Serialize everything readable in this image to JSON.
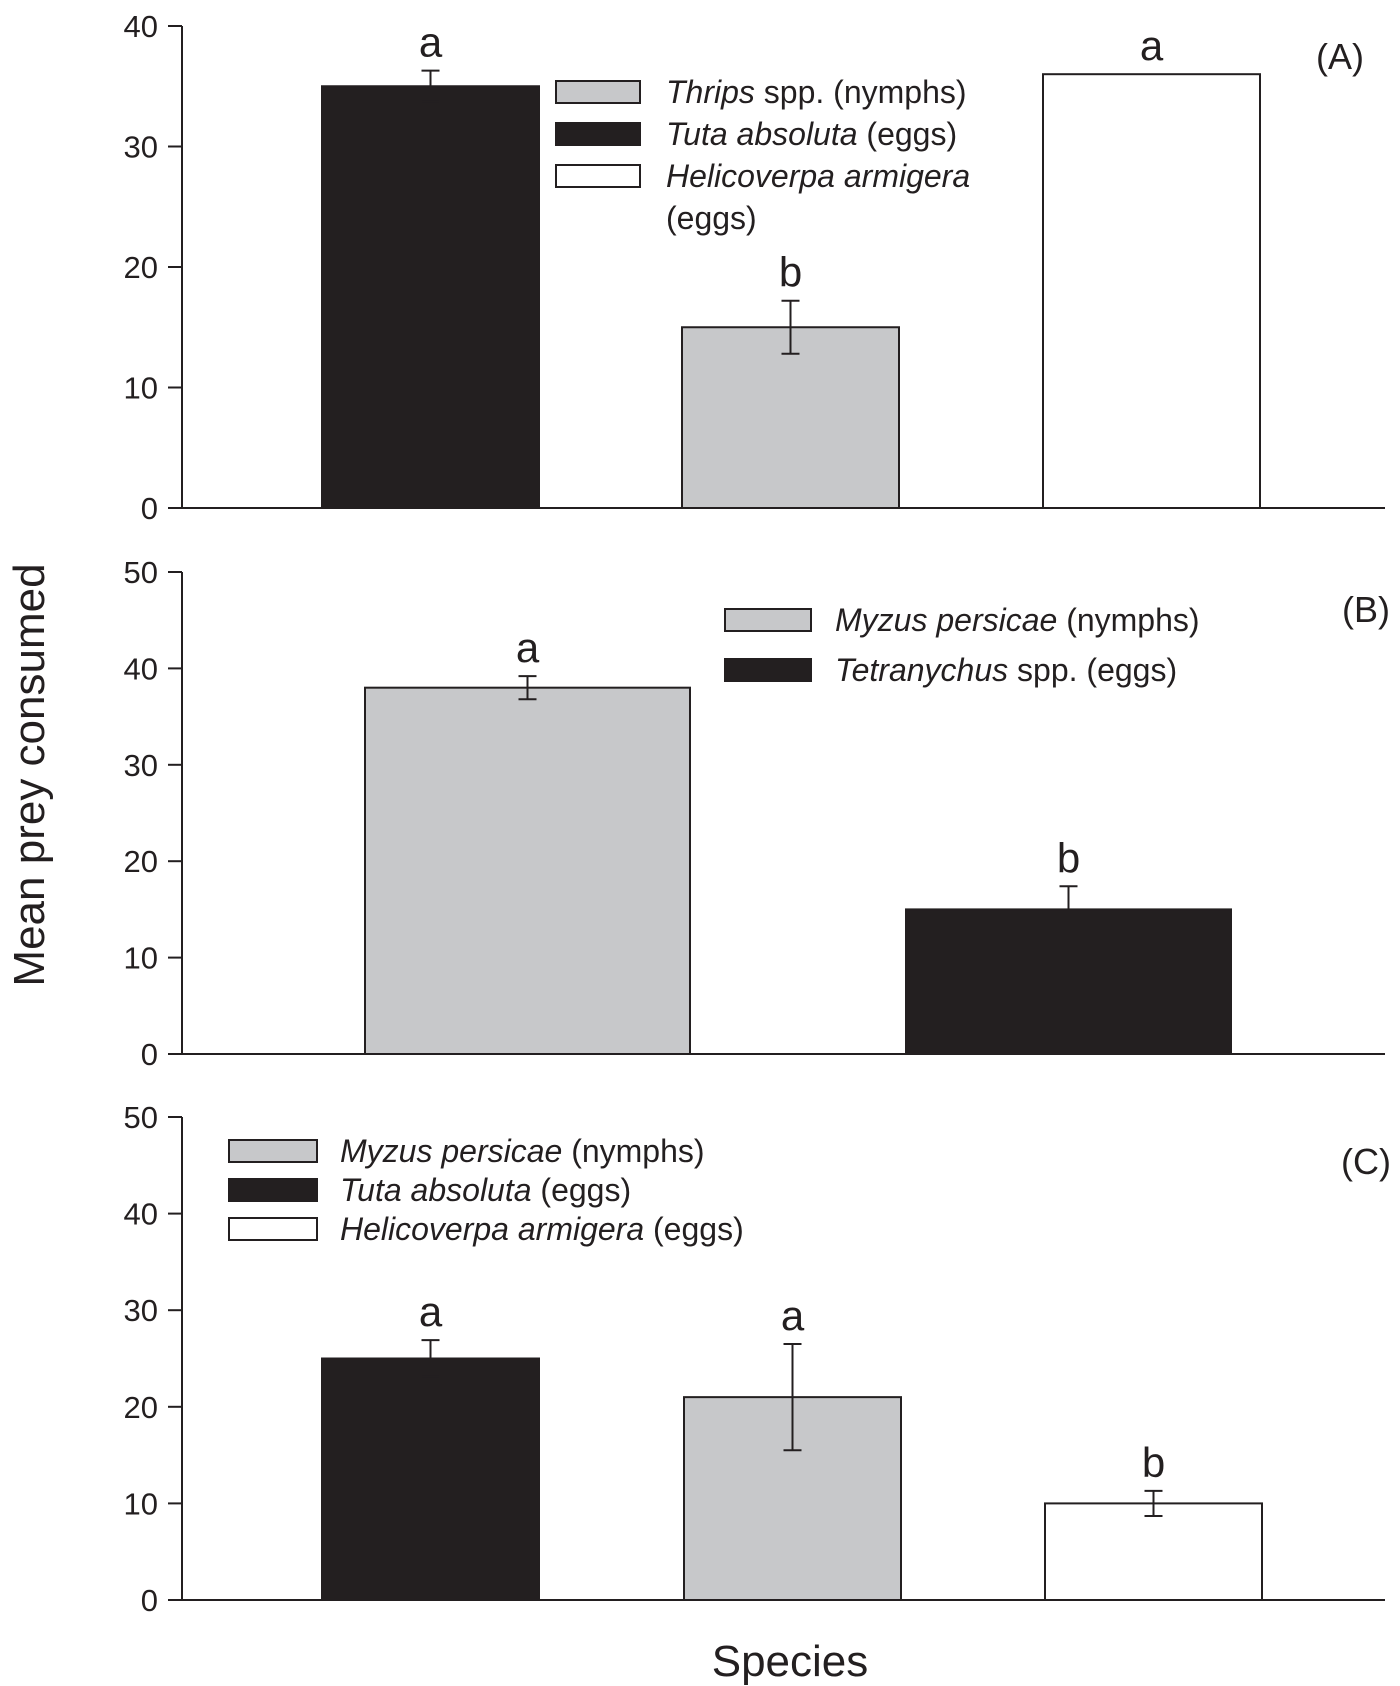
{
  "colors": {
    "black": "#231f20",
    "grey": "#c7c8ca",
    "white": "#ffffff"
  },
  "chart_data": {
    "type": "bar",
    "ylabel": "Mean prey consumed",
    "xlabel": "Species",
    "panels": [
      {
        "id": "A",
        "label": "(A)",
        "ylim": [
          0,
          40
        ],
        "yticks": [
          0,
          10,
          20,
          30,
          40
        ],
        "bars": [
          {
            "series": "Tuta absoluta (eggs)",
            "color": "black",
            "value": 35,
            "err": 1.3,
            "letter": "a"
          },
          {
            "series": "Thrips spp. (nymphs)",
            "color": "grey",
            "value": 15,
            "err": 2.2,
            "letter": "b"
          },
          {
            "series": "Helicoverpa armigera (eggs)",
            "color": "white",
            "value": 36,
            "err": 0,
            "letter": "a"
          }
        ],
        "legend": [
          {
            "color": "grey",
            "parts": [
              {
                "t": "Thrips",
                "i": true
              },
              {
                "t": " spp. (nymphs)",
                "i": false
              }
            ]
          },
          {
            "color": "black",
            "parts": [
              {
                "t": "Tuta absoluta",
                "i": true
              },
              {
                "t": " (eggs)",
                "i": false
              }
            ]
          },
          {
            "color": "white",
            "parts": [
              {
                "t": "Helicoverpa armigera",
                "i": true
              }
            ],
            "cont": [
              {
                "t": "(eggs)",
                "i": false
              }
            ]
          }
        ]
      },
      {
        "id": "B",
        "label": "(B)",
        "ylim": [
          0,
          50
        ],
        "yticks": [
          0,
          10,
          20,
          30,
          40,
          50
        ],
        "bars": [
          {
            "series": "Myzus persicae (nymphs)",
            "color": "grey",
            "value": 38,
            "err": 1.2,
            "letter": "a"
          },
          {
            "series": "Tetranychus spp. (eggs)",
            "color": "black",
            "value": 15,
            "err": 2.4,
            "letter": "b"
          }
        ],
        "legend": [
          {
            "color": "grey",
            "parts": [
              {
                "t": "Myzus persicae",
                "i": true
              },
              {
                "t": " (nymphs)",
                "i": false
              }
            ]
          },
          {
            "color": "black",
            "parts": [
              {
                "t": "Tetranychus",
                "i": true
              },
              {
                "t": " spp. (eggs)",
                "i": false
              }
            ]
          }
        ]
      },
      {
        "id": "C",
        "label": "(C)",
        "ylim": [
          0,
          50
        ],
        "yticks": [
          0,
          10,
          20,
          30,
          40,
          50
        ],
        "bars": [
          {
            "series": "Tuta absoluta (eggs)",
            "color": "black",
            "value": 25,
            "err": 1.9,
            "letter": "a"
          },
          {
            "series": "Myzus persicae (nymphs)",
            "color": "grey",
            "value": 21,
            "err": 5.5,
            "letter": "a"
          },
          {
            "series": "Helicoverpa armigera (eggs)",
            "color": "white",
            "value": 10,
            "err": 1.3,
            "letter": "b"
          }
        ],
        "legend": [
          {
            "color": "grey",
            "parts": [
              {
                "t": "Myzus persicae",
                "i": true
              },
              {
                "t": " (nymphs)",
                "i": false
              }
            ]
          },
          {
            "color": "black",
            "parts": [
              {
                "t": "Tuta absoluta",
                "i": true
              },
              {
                "t": " (eggs)",
                "i": false
              }
            ]
          },
          {
            "color": "white",
            "parts": [
              {
                "t": "Helicoverpa armigera",
                "i": true
              },
              {
                "t": " (eggs)",
                "i": false
              }
            ]
          }
        ]
      }
    ]
  }
}
